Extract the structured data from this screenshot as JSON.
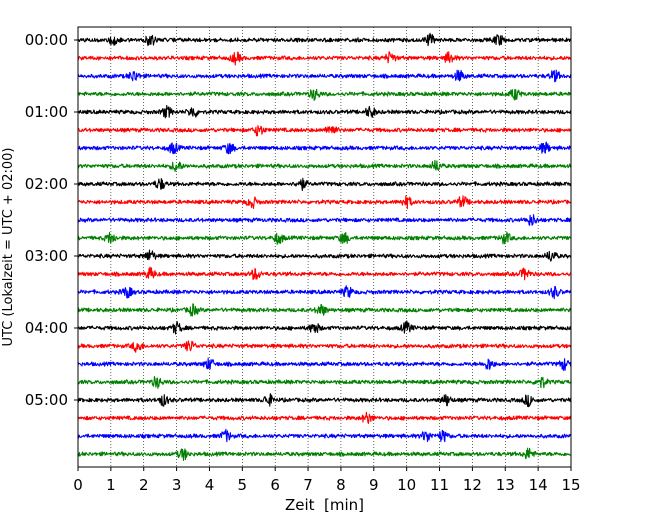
{
  "chart_data": {
    "type": "line",
    "title": "",
    "xlabel": "Zeit  [min]",
    "ylabel": "UTC (Lokalzeit = UTC + 02:00)",
    "xlim": [
      0,
      15
    ],
    "x_ticks": [
      "0",
      "1",
      "2",
      "3",
      "4",
      "5",
      "6",
      "7",
      "8",
      "9",
      "10",
      "11",
      "12",
      "13",
      "14",
      "15"
    ],
    "y_ticks": [
      "00:00",
      "01:00",
      "02:00",
      "03:00",
      "04:00",
      "05:00"
    ],
    "traces_per_hour": 4,
    "trace_minutes": 15,
    "grid_x": true,
    "grid_style": "dotted",
    "color_cycle": [
      "#000000",
      "#ff0000",
      "#0000ff",
      "#008000"
    ],
    "series": [
      {
        "start": "00:00",
        "color": "#000000",
        "events_min": [
          1.1,
          2.2,
          10.7,
          12.8
        ]
      },
      {
        "start": "00:15",
        "color": "#ff0000",
        "events_min": [
          4.8,
          9.5,
          11.3
        ]
      },
      {
        "start": "00:30",
        "color": "#0000ff",
        "events_min": [
          1.7,
          11.6,
          14.5
        ]
      },
      {
        "start": "00:45",
        "color": "#008000",
        "events_min": [
          7.2,
          13.3
        ]
      },
      {
        "start": "01:00",
        "color": "#000000",
        "events_min": [
          2.7,
          3.5,
          8.9
        ]
      },
      {
        "start": "01:15",
        "color": "#ff0000",
        "events_min": [
          5.5,
          7.7
        ]
      },
      {
        "start": "01:30",
        "color": "#0000ff",
        "events_min": [
          2.9,
          4.6,
          14.2
        ]
      },
      {
        "start": "01:45",
        "color": "#008000",
        "events_min": [
          3.0,
          10.9
        ]
      },
      {
        "start": "02:00",
        "color": "#000000",
        "events_min": [
          2.5,
          6.8
        ]
      },
      {
        "start": "02:15",
        "color": "#ff0000",
        "events_min": [
          5.3,
          10.0,
          11.7
        ]
      },
      {
        "start": "02:30",
        "color": "#0000ff",
        "events_min": [
          13.8
        ]
      },
      {
        "start": "02:45",
        "color": "#008000",
        "events_min": [
          1.0,
          6.1,
          8.1,
          13.0
        ]
      },
      {
        "start": "03:00",
        "color": "#000000",
        "events_min": [
          2.2,
          14.4
        ]
      },
      {
        "start": "03:15",
        "color": "#ff0000",
        "events_min": [
          2.2,
          5.4,
          13.6
        ]
      },
      {
        "start": "03:30",
        "color": "#0000ff",
        "events_min": [
          1.5,
          8.2,
          14.5
        ]
      },
      {
        "start": "03:45",
        "color": "#008000",
        "events_min": [
          3.5,
          7.4
        ]
      },
      {
        "start": "04:00",
        "color": "#000000",
        "events_min": [
          3.0,
          7.2,
          10.0
        ]
      },
      {
        "start": "04:15",
        "color": "#ff0000",
        "events_min": [
          1.8,
          3.4
        ]
      },
      {
        "start": "04:30",
        "color": "#0000ff",
        "events_min": [
          4.0,
          12.5,
          14.8
        ]
      },
      {
        "start": "04:45",
        "color": "#008000",
        "events_min": [
          2.4,
          14.1
        ]
      },
      {
        "start": "05:00",
        "color": "#000000",
        "events_min": [
          2.6,
          5.8,
          11.2,
          13.7
        ]
      },
      {
        "start": "05:15",
        "color": "#ff0000",
        "events_min": [
          8.8
        ]
      },
      {
        "start": "05:30",
        "color": "#0000ff",
        "events_min": [
          4.5,
          10.6,
          11.1
        ]
      },
      {
        "start": "05:45",
        "color": "#008000",
        "events_min": [
          3.2,
          13.7
        ]
      }
    ]
  }
}
